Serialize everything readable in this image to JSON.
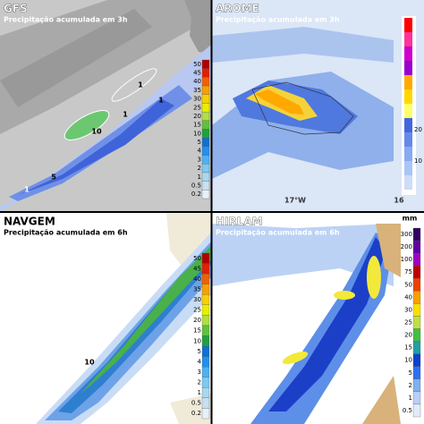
{
  "panels": [
    {
      "title": "GFS",
      "subtitle": "Precipitação acumulada em 3h",
      "scale": [
        50,
        45,
        40,
        35,
        30,
        25,
        20,
        15,
        10,
        5,
        4,
        3,
        2,
        1,
        0.5,
        0.2
      ],
      "labels": [
        "10",
        "1",
        "1",
        "5",
        "1",
        "1"
      ]
    },
    {
      "title": "AROME",
      "subtitle": "Precipitação acumulada em 3h",
      "scale": [
        20,
        10
      ],
      "labels": [
        "17°W",
        "16"
      ]
    },
    {
      "title": "NAVGEM",
      "subtitle": "Precipitação acumulada em 6h",
      "scale": [
        50,
        45,
        40,
        35,
        30,
        25,
        20,
        15,
        10,
        5,
        4,
        3,
        2,
        1,
        0.5,
        0.2
      ],
      "labels": [
        "10"
      ]
    },
    {
      "title": "HIRLAM",
      "subtitle": "Precipitação acumulada em 6h",
      "scale": [
        300,
        200,
        100,
        75,
        50,
        40,
        30,
        25,
        20,
        15,
        10,
        5,
        2,
        1,
        0.5
      ],
      "labels": [
        "mm"
      ]
    }
  ]
}
